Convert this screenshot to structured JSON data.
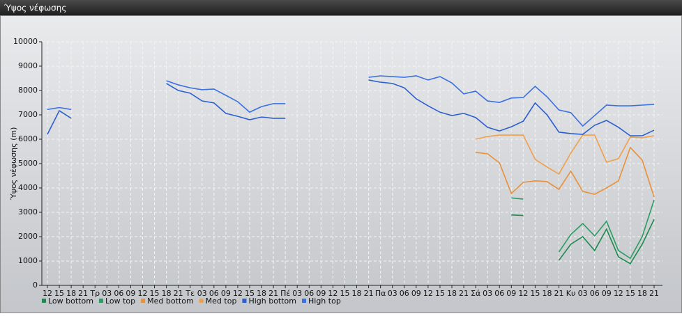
{
  "window_title": "Ύψος νέφωσης",
  "chart_data": {
    "type": "line",
    "y_label": "Ύψος νέφωσης (m)",
    "categories": [
      "12",
      "15",
      "18",
      "21",
      "Τρ",
      "03",
      "06",
      "09",
      "12",
      "15",
      "18",
      "21",
      "Τε",
      "03",
      "06",
      "09",
      "12",
      "15",
      "18",
      "21",
      "Πέ",
      "03",
      "06",
      "09",
      "12",
      "15",
      "18",
      "21",
      "Πα",
      "03",
      "06",
      "09",
      "12",
      "15",
      "18",
      "21",
      "Σά",
      "03",
      "06",
      "09",
      "12",
      "15",
      "18",
      "21",
      "Κυ",
      "03",
      "06",
      "09",
      "12",
      "15",
      "18",
      "21"
    ],
    "ylim": [
      0,
      10000
    ],
    "yticks": [
      0,
      1000,
      2000,
      3000,
      4000,
      5000,
      6000,
      7000,
      8000,
      9000,
      10000
    ],
    "grid": true,
    "legend": "bottom-left",
    "series": [
      {
        "name": "Low bottom",
        "color": "#1e8a4e",
        "values": [
          null,
          null,
          null,
          null,
          null,
          null,
          null,
          null,
          null,
          null,
          null,
          null,
          null,
          null,
          null,
          null,
          null,
          null,
          null,
          null,
          null,
          null,
          null,
          null,
          null,
          null,
          null,
          null,
          null,
          null,
          null,
          null,
          null,
          null,
          null,
          null,
          null,
          null,
          null,
          2890,
          2870,
          null,
          null,
          1030,
          1690,
          2000,
          1430,
          2310,
          1170,
          890,
          1690,
          2710
        ]
      },
      {
        "name": "Low top",
        "color": "#2a9d62",
        "values": [
          null,
          null,
          null,
          null,
          null,
          null,
          null,
          null,
          null,
          null,
          null,
          null,
          null,
          null,
          null,
          null,
          null,
          null,
          null,
          null,
          null,
          null,
          null,
          null,
          null,
          null,
          null,
          null,
          null,
          null,
          null,
          null,
          null,
          null,
          null,
          null,
          null,
          null,
          null,
          3590,
          3540,
          null,
          null,
          1370,
          2090,
          2540,
          2030,
          2630,
          1430,
          1110,
          2000,
          3510
        ]
      },
      {
        "name": "Med bottom",
        "color": "#e8913a",
        "values": [
          null,
          null,
          null,
          null,
          null,
          null,
          null,
          null,
          null,
          null,
          null,
          null,
          null,
          null,
          null,
          null,
          null,
          null,
          null,
          null,
          null,
          null,
          null,
          null,
          null,
          null,
          null,
          null,
          null,
          null,
          null,
          null,
          null,
          null,
          null,
          null,
          5460,
          5400,
          5030,
          3770,
          4230,
          4290,
          4260,
          3940,
          4690,
          3860,
          3740,
          4000,
          4290,
          5660,
          5140,
          3630
        ]
      },
      {
        "name": "Med top",
        "color": "#f0a04a",
        "values": [
          null,
          null,
          null,
          null,
          null,
          null,
          null,
          null,
          null,
          null,
          null,
          null,
          null,
          null,
          null,
          null,
          null,
          null,
          null,
          null,
          null,
          null,
          null,
          null,
          null,
          null,
          null,
          null,
          null,
          null,
          null,
          null,
          null,
          null,
          null,
          null,
          6000,
          6110,
          6170,
          6170,
          6170,
          5170,
          4860,
          4570,
          5430,
          6170,
          6170,
          5060,
          5200,
          6090,
          6060,
          6140
        ]
      },
      {
        "name": "High bottom",
        "color": "#2b5fd0",
        "values": [
          6200,
          7170,
          6860,
          null,
          null,
          null,
          null,
          null,
          null,
          null,
          8290,
          8000,
          7890,
          7570,
          7490,
          7060,
          6940,
          6800,
          6910,
          6860,
          6860,
          null,
          null,
          null,
          null,
          null,
          null,
          8430,
          8340,
          8290,
          8110,
          7660,
          7370,
          7110,
          6970,
          7060,
          6890,
          6490,
          6340,
          6510,
          6740,
          7490,
          7000,
          6290,
          6230,
          6200,
          6570,
          6770,
          6490,
          6140,
          6140,
          6370
        ]
      },
      {
        "name": "High top",
        "color": "#3a70e0",
        "values": [
          7220,
          7300,
          7220,
          null,
          null,
          null,
          null,
          null,
          null,
          null,
          8400,
          8230,
          8110,
          8030,
          8060,
          7800,
          7540,
          7110,
          7340,
          7460,
          7460,
          null,
          null,
          null,
          null,
          null,
          null,
          8540,
          8600,
          8570,
          8540,
          8600,
          8430,
          8570,
          8310,
          7860,
          7970,
          7570,
          7510,
          7690,
          7710,
          8170,
          7740,
          7200,
          7090,
          6540,
          6970,
          7400,
          7370,
          7370,
          7400,
          7430
        ]
      }
    ]
  }
}
